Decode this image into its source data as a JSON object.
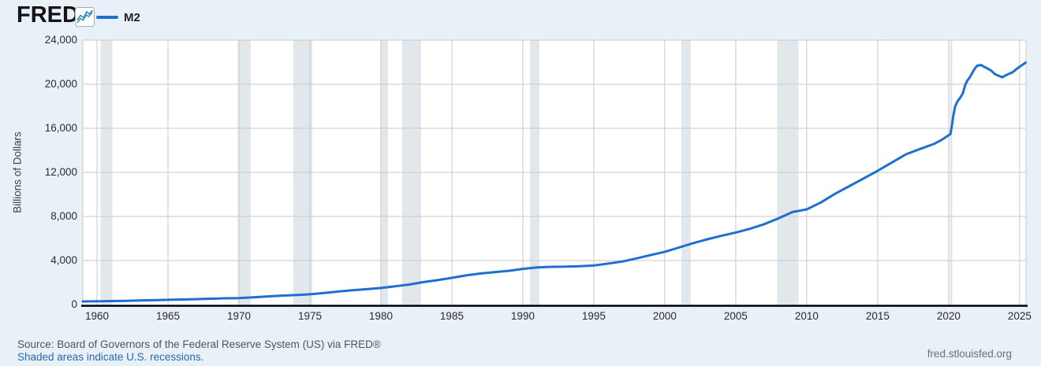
{
  "header": {
    "logo_text": "FRED",
    "registered_mark": "®",
    "legend": {
      "label": "M2"
    }
  },
  "y_axis": {
    "title": "Billions of Dollars",
    "ticks": [
      {
        "value": 0,
        "label": "0"
      },
      {
        "value": 4000,
        "label": "4,000"
      },
      {
        "value": 8000,
        "label": "8,000"
      },
      {
        "value": 12000,
        "label": "12,000"
      },
      {
        "value": 16000,
        "label": "16,000"
      },
      {
        "value": 20000,
        "label": "20,000"
      },
      {
        "value": 24000,
        "label": "24,000"
      }
    ]
  },
  "x_axis": {
    "ticks": [
      {
        "value": 1960,
        "label": "1960"
      },
      {
        "value": 1965,
        "label": "1965"
      },
      {
        "value": 1970,
        "label": "1970"
      },
      {
        "value": 1975,
        "label": "1975"
      },
      {
        "value": 1980,
        "label": "1980"
      },
      {
        "value": 1985,
        "label": "1985"
      },
      {
        "value": 1990,
        "label": "1990"
      },
      {
        "value": 1995,
        "label": "1995"
      },
      {
        "value": 2000,
        "label": "2000"
      },
      {
        "value": 2005,
        "label": "2005"
      },
      {
        "value": 2010,
        "label": "2010"
      },
      {
        "value": 2015,
        "label": "2015"
      },
      {
        "value": 2020,
        "label": "2020"
      },
      {
        "value": 2025,
        "label": "2025"
      }
    ]
  },
  "footer": {
    "source_line": "Source: Board of Governors of the Federal Reserve System (US) via FRED®",
    "recession_note": "Shaded areas indicate U.S. recessions.",
    "site_link": "fred.stlouisfed.org"
  },
  "colors": {
    "background": "#e8f1f8",
    "plot_background": "#ffffff",
    "gridline": "#c9c9c9",
    "recession_band": "#e2e7ec",
    "axis_line": "#000000",
    "tick_label": "#2b2b2b",
    "axis_title": "#404040",
    "logo": "#141414",
    "legend_label": "#222222",
    "source_text": "#545454",
    "link": "#2a67b1",
    "footer_url": "#6e6e6e",
    "icon_border": "#a6b0b8",
    "icon_line_blue": "#3b82c4",
    "icon_line_green": "#2ea58c"
  },
  "chart_data": {
    "type": "line",
    "title": "M2",
    "xlabel": "",
    "ylabel": "Billions of Dollars",
    "x_range": [
      1959.0,
      2025.45
    ],
    "y_range": [
      0,
      24000
    ],
    "grid": true,
    "legend_position": "top-left",
    "units": "Billions of Dollars",
    "series": [
      {
        "name": "M2",
        "color": "#1e6fd2",
        "points": [
          [
            1959.0,
            287
          ],
          [
            1959.5,
            292
          ],
          [
            1960,
            298
          ],
          [
            1961,
            318
          ],
          [
            1962,
            343
          ],
          [
            1963,
            371
          ],
          [
            1964,
            401
          ],
          [
            1965,
            433
          ],
          [
            1966,
            462
          ],
          [
            1967,
            495
          ],
          [
            1968,
            533
          ],
          [
            1969,
            568
          ],
          [
            1970,
            592
          ],
          [
            1971,
            660
          ],
          [
            1972,
            740
          ],
          [
            1973,
            812
          ],
          [
            1974,
            861
          ],
          [
            1975,
            935
          ],
          [
            1976,
            1060
          ],
          [
            1977,
            1188
          ],
          [
            1978,
            1298
          ],
          [
            1979,
            1400
          ],
          [
            1980,
            1510
          ],
          [
            1981,
            1656
          ],
          [
            1982,
            1822
          ],
          [
            1983,
            2043
          ],
          [
            1984,
            2220
          ],
          [
            1985,
            2429
          ],
          [
            1986,
            2650
          ],
          [
            1987,
            2820
          ],
          [
            1988,
            2947
          ],
          [
            1989,
            3063
          ],
          [
            1990,
            3246
          ],
          [
            1991,
            3370
          ],
          [
            1992,
            3426
          ],
          [
            1993,
            3444
          ],
          [
            1994,
            3486
          ],
          [
            1995,
            3548
          ],
          [
            1996,
            3721
          ],
          [
            1997,
            3904
          ],
          [
            1998,
            4190
          ],
          [
            1999,
            4490
          ],
          [
            2000,
            4790
          ],
          [
            2001,
            5180
          ],
          [
            2002,
            5580
          ],
          [
            2003,
            5930
          ],
          [
            2004,
            6240
          ],
          [
            2005,
            6545
          ],
          [
            2006,
            6880
          ],
          [
            2007,
            7300
          ],
          [
            2008,
            7820
          ],
          [
            2009,
            8400
          ],
          [
            2010,
            8640
          ],
          [
            2011,
            9270
          ],
          [
            2012,
            10060
          ],
          [
            2013,
            10750
          ],
          [
            2014,
            11440
          ],
          [
            2015,
            12140
          ],
          [
            2016,
            12900
          ],
          [
            2017,
            13640
          ],
          [
            2018,
            14130
          ],
          [
            2019,
            14600
          ],
          [
            2019.5,
            14940
          ],
          [
            2020.04,
            15400
          ],
          [
            2020.12,
            15470
          ],
          [
            2020.21,
            16100
          ],
          [
            2020.33,
            17150
          ],
          [
            2020.46,
            18000
          ],
          [
            2020.62,
            18450
          ],
          [
            2020.83,
            18800
          ],
          [
            2021.0,
            19180
          ],
          [
            2021.17,
            19950
          ],
          [
            2021.33,
            20350
          ],
          [
            2021.5,
            20650
          ],
          [
            2021.67,
            21050
          ],
          [
            2021.83,
            21400
          ],
          [
            2022.0,
            21680
          ],
          [
            2022.29,
            21740
          ],
          [
            2022.5,
            21580
          ],
          [
            2022.75,
            21420
          ],
          [
            2023.0,
            21230
          ],
          [
            2023.25,
            20920
          ],
          [
            2023.5,
            20780
          ],
          [
            2023.79,
            20630
          ],
          [
            2024.0,
            20790
          ],
          [
            2024.25,
            20940
          ],
          [
            2024.5,
            21080
          ],
          [
            2024.75,
            21340
          ],
          [
            2025.0,
            21590
          ],
          [
            2025.21,
            21770
          ],
          [
            2025.42,
            21960
          ]
        ]
      }
    ],
    "recessions": [
      [
        1960.25,
        1961.08
      ],
      [
        1969.92,
        1970.83
      ],
      [
        1973.83,
        1975.17
      ],
      [
        1980.0,
        1980.5
      ],
      [
        1981.5,
        1982.83
      ],
      [
        1990.5,
        1991.17
      ],
      [
        2001.17,
        2001.83
      ],
      [
        2007.92,
        2009.42
      ],
      [
        2020.08,
        2020.25
      ]
    ]
  }
}
